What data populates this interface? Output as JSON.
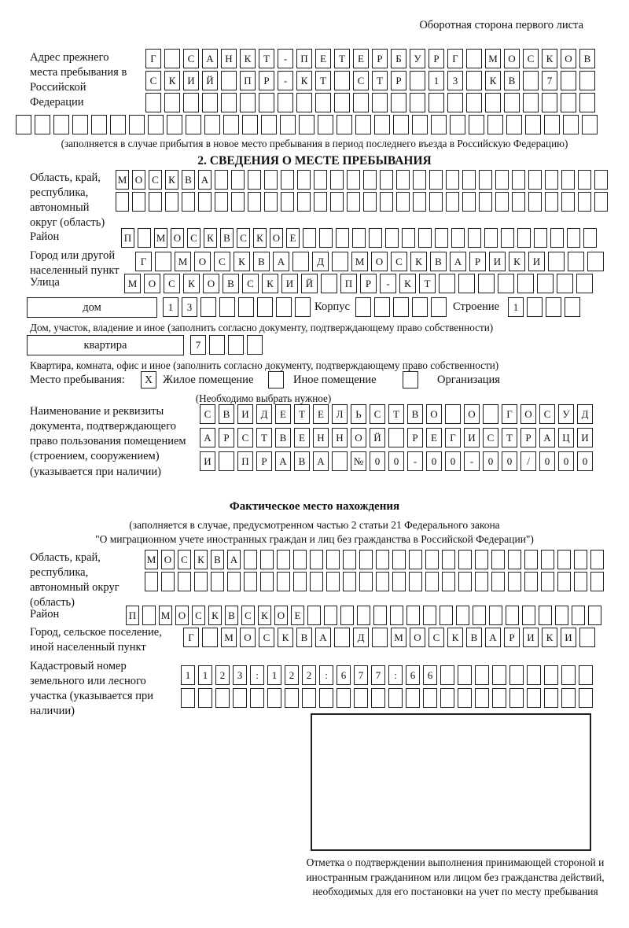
{
  "header_note": "Оборотная сторона первого листа",
  "prev_address": {
    "label": "Адрес прежнего места пребывания в Российской Федерации",
    "row1": "Г САНКТ-ПЕТЕРБУРГ МОСКОВ",
    "row2": "СКИЙ ПР-КТ СТР 13 КВ 7",
    "row3": "",
    "row4": "",
    "note": "(заполняется в случае прибытия в новое место пребывания в период последнего въезда в Российскую Федерацию)"
  },
  "section2": {
    "title": "2. СВЕДЕНИЯ О МЕСТЕ ПРЕБЫВАНИЯ",
    "region_label": "Область, край, республика, автономный округ (область)",
    "region_row1": "МОСКВА",
    "region_row2": "",
    "district_label": "Район",
    "district_row": "П МОСКВСКОЕ",
    "city_label": "Город или другой населенный пункт",
    "city_row": "Г МОСКВА Д МОСКВАРИКИ",
    "street_label": "Улица",
    "street_row": "МОСКОВСКИЙ ПР-КТ",
    "house_box_label": "дом",
    "house_row": "13",
    "korpus_label": "Корпус",
    "korpus_row": "",
    "stroenie_label": "Строение",
    "stroenie_row": "1",
    "house_note": "Дом, участок, владение и иное (заполнить согласно документу, подтверждающему право собственности)",
    "apt_box_label": "квартира",
    "apt_row": "7",
    "apt_note": "Квартира, комната, офис и иное (заполнить согласно документу, подтверждающему право собственности)",
    "stay_label": "Место пребывания:",
    "stay_options": [
      {
        "label": "Жилое помещение",
        "checked": "X"
      },
      {
        "label": "Иное помещение",
        "checked": ""
      },
      {
        "label": "Организация",
        "checked": ""
      }
    ],
    "stay_note": "(Необходимо выбрать нужное)",
    "doc_label": "Наименование и реквизиты документа, подтверждающего право пользования помещением (строением, сооружением) (указывается при наличии)",
    "doc_row1": "СВИДЕТЕЛЬСТВО О ГОСУД",
    "doc_row2": "АРСТВЕННОЙ РЕГИСТРАЦИ",
    "doc_row3": "И ПРАВА №00-00-00/000"
  },
  "actual_location": {
    "title": "Фактическое место нахождения",
    "note_line1": "(заполняется в случае, предусмотренном частью 2 статьи 21 Федерального закона",
    "note_line2": "\"О миграционном учете иностранных граждан и лиц без гражданства в Российской Федерации\")",
    "region_label": "Область, край, республика, автономный округ (область)",
    "region_row1": "МОСКВА",
    "region_row2": "",
    "district_label": "Район",
    "district_row": "П МОСКВСКОЕ",
    "city_label": "Город, сельское поселение, иной населенный пункт",
    "city_row": "Г МОСКВА Д МОСКВАРИКИ",
    "cadastre_label": "Кадастровый номер земельного или лесного участка (указывается при наличии)",
    "cadastre_row1": "1123:122:677:66",
    "cadastre_row2": "",
    "mark_note": "Отметка о подтверждении выполнения принимающей стороной и иностранным гражданином или лицом без гражданства действий, необходимых для его постановки на учет по месту пребывания"
  }
}
